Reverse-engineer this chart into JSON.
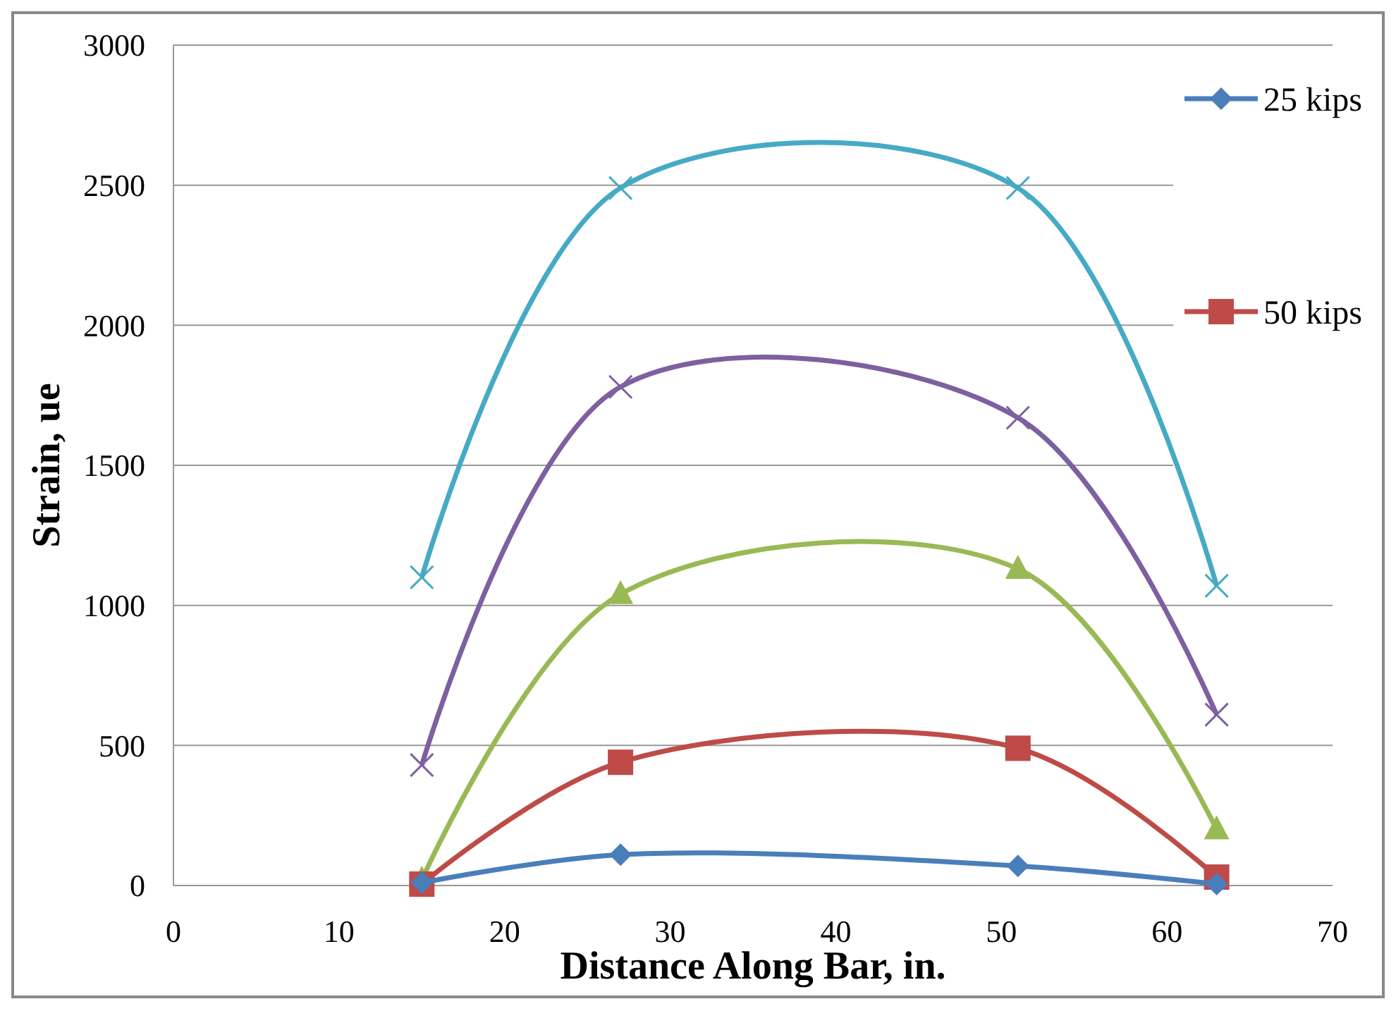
{
  "chart_data": {
    "type": "line",
    "xlabel": "Distance Along Bar, in.",
    "ylabel": "Strain, ue",
    "xlim": [
      0,
      70
    ],
    "xticks": [
      0,
      10,
      20,
      30,
      40,
      50,
      60,
      70
    ],
    "ylim": [
      0,
      3000
    ],
    "yticks": [
      0,
      500,
      1000,
      1500,
      2000,
      2500,
      3000
    ],
    "grid": "y",
    "legend": "right",
    "series": [
      {
        "name": "25 kips",
        "color": "#4a7ebb",
        "marker": "diamond",
        "x": [
          15,
          27,
          51,
          63
        ],
        "values": [
          10,
          110,
          70,
          5
        ]
      },
      {
        "name": "50 kips",
        "color": "#be4b48",
        "marker": "square",
        "x": [
          15,
          27,
          51,
          63
        ],
        "values": [
          5,
          440,
          490,
          30
        ]
      },
      {
        "color": "#98b954",
        "marker": "triangle",
        "x": [
          15,
          27,
          51,
          63
        ],
        "values": [
          20,
          1040,
          1130,
          200
        ]
      },
      {
        "color": "#7d60a0",
        "marker": "cross",
        "x": [
          15,
          27,
          51,
          63
        ],
        "values": [
          430,
          1780,
          1670,
          610
        ]
      },
      {
        "color": "#46aac5",
        "marker": "cross",
        "x": [
          15,
          27,
          51,
          63
        ],
        "values": [
          1100,
          2490,
          2490,
          1070
        ]
      }
    ]
  }
}
